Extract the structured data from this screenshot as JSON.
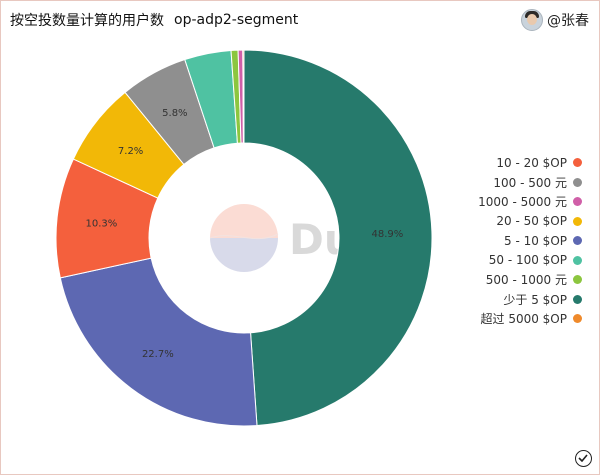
{
  "header": {
    "title": "按空投数量计算的用户数",
    "subtitle": "op-adp2-segment",
    "user": "@张春"
  },
  "watermark": "Dune",
  "chart_data": {
    "type": "pie",
    "donut": true,
    "slices": [
      {
        "label": "少于 5 $OP",
        "value": 48.9,
        "display": "48.9%",
        "color": "#267a6c"
      },
      {
        "label": "5 - 10 $OP",
        "value": 22.7,
        "display": "22.7%",
        "color": "#5d68b2"
      },
      {
        "label": "10 - 20 $OP",
        "value": 10.3,
        "display": "10.3%",
        "color": "#f4603d"
      },
      {
        "label": "20 - 50 $OP",
        "value": 7.2,
        "display": "7.2%",
        "color": "#f2b807"
      },
      {
        "label": "100 - 500 元",
        "value": 5.8,
        "display": "5.8%",
        "color": "#8f8f8f"
      },
      {
        "label": "50 - 100 $OP",
        "value": 4.0,
        "display": "",
        "color": "#4fc2a2"
      },
      {
        "label": "500 - 1000 元",
        "value": 0.6,
        "display": "",
        "color": "#8cc63f"
      },
      {
        "label": "1000 - 5000 元",
        "value": 0.4,
        "display": "",
        "color": "#d05fa8"
      },
      {
        "label": "超过 5000 $OP",
        "value": 0.1,
        "display": "",
        "color": "#ef8a2b"
      }
    ],
    "legend": [
      {
        "label": "10 - 20 $OP",
        "color": "#f4603d"
      },
      {
        "label": "100 - 500 元",
        "color": "#8f8f8f"
      },
      {
        "label": "1000 - 5000 元",
        "color": "#d05fa8"
      },
      {
        "label": "20 - 50 $OP",
        "color": "#f2b807"
      },
      {
        "label": "5 - 10 $OP",
        "color": "#5d68b2"
      },
      {
        "label": "50 - 100 $OP",
        "color": "#4fc2a2"
      },
      {
        "label": "500 - 1000 元",
        "color": "#8cc63f"
      },
      {
        "label": "少于 5 $OP",
        "color": "#267a6c"
      },
      {
        "label": "超过 5000 $OP",
        "color": "#ef8a2b"
      }
    ],
    "legend_position": "right"
  }
}
